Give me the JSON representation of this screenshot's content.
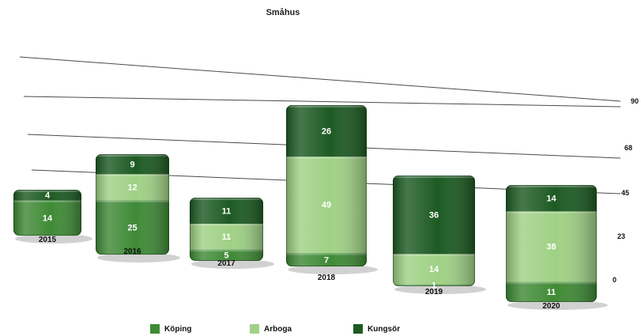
{
  "chart_data": {
    "type": "bar",
    "stacked": true,
    "title": "Småhus",
    "categories": [
      "2015",
      "2016",
      "2017",
      "2018",
      "2019",
      "2020"
    ],
    "series": [
      {
        "name": "Köping",
        "color": "#3f8a36",
        "values": [
          14,
          25,
          5,
          7,
          1,
          11
        ]
      },
      {
        "name": "Arboga",
        "color": "#9fd185",
        "values": [
          0,
          12,
          11,
          49,
          14,
          38
        ]
      },
      {
        "name": "Kungsör",
        "color": "#1d5a23",
        "values": [
          4,
          9,
          11,
          26,
          36,
          14
        ]
      }
    ],
    "data_labels": [
      [
        "14",
        "",
        "4"
      ],
      [
        "25",
        "12",
        "9"
      ],
      [
        "5",
        "11",
        "11"
      ],
      [
        "7",
        "49",
        "26"
      ],
      [
        "1",
        "14",
        "36"
      ],
      [
        "11",
        "38",
        "14"
      ]
    ],
    "y_ticks": [
      "0",
      "23",
      "45",
      "68",
      "90"
    ],
    "ylim": [
      0,
      90
    ],
    "grid": true,
    "legend_position": "bottom"
  }
}
